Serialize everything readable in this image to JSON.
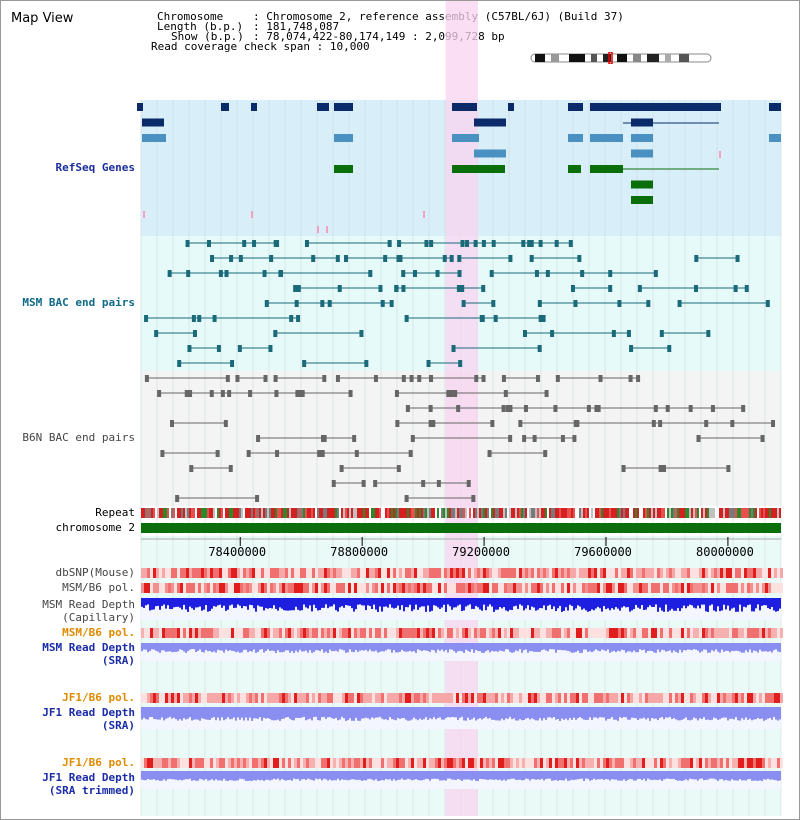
{
  "page": {
    "title": "Map View"
  },
  "header": {
    "chromosome_label": "Chromosome",
    "chromosome_value": "Chromosome 2, reference assembly (C57BL/6J) (Build 37)",
    "length_label": "Length (b.p.)",
    "length_value": "181,748,087",
    "show_label": "Show (b.p.)",
    "show_value": "78,074,422-80,174,149 : 2,099,728 bp",
    "span_label": "Read coverage check span",
    "span_value": "10,000"
  },
  "tracks": {
    "refseq": "RefSeq Genes",
    "msm_bac": "MSM BAC end pairs",
    "b6n_bac": "B6N BAC end pairs",
    "repeat": "Repeat",
    "chromosome": "chromosome 2",
    "dbsnp": "dbSNP(Mouse)",
    "msm_b6_pol_1": "MSM/B6 pol.",
    "msm_read_depth_cap_1": "MSM Read Depth",
    "msm_read_depth_cap_2": "(Capillary)",
    "msm_b6_pol_2": "MSM/B6 pol.",
    "msm_read_depth_sra_1": "MSM Read Depth",
    "msm_read_depth_sra_2": "(SRA)",
    "jf1_b6_pol_1": "JF1/B6 pol.",
    "jf1_read_depth_sra_1": "JF1 Read Depth",
    "jf1_read_depth_sra_2": "(SRA)",
    "jf1_b6_pol_2": "JF1/B6 pol.",
    "jf1_read_depth_trim_1": "JF1 Read Depth",
    "jf1_read_depth_trim_2": "(SRA trimmed)"
  },
  "axis": {
    "ticks": [
      {
        "label": "78400000",
        "value": 78400000
      },
      {
        "label": "78800000",
        "value": 78800000
      },
      {
        "label": "79200000",
        "value": 79200000
      },
      {
        "label": "79600000",
        "value": 79600000
      },
      {
        "label": "80000000",
        "value": 80000000
      }
    ],
    "start": 78074422,
    "end": 80174149
  },
  "highlight": {
    "start": 79074000,
    "end": 79180000
  },
  "colors": {
    "refseq_bg": "#d8effa",
    "bac_bg": "#e6fafa",
    "b6n_bg": "#f4f4f4",
    "highlight": "#f8d4f0",
    "navy": "#0a2a6a",
    "steel": "#4a90c0",
    "green": "#0a6e0a",
    "teal_line": "#1a6a7a",
    "gray_line": "#666666",
    "depth_blue": "#1e1ee0",
    "depth_light": "#8a8ef0",
    "pol_red": "#e83a3a",
    "chrom_green": "#0a6e0a"
  }
}
